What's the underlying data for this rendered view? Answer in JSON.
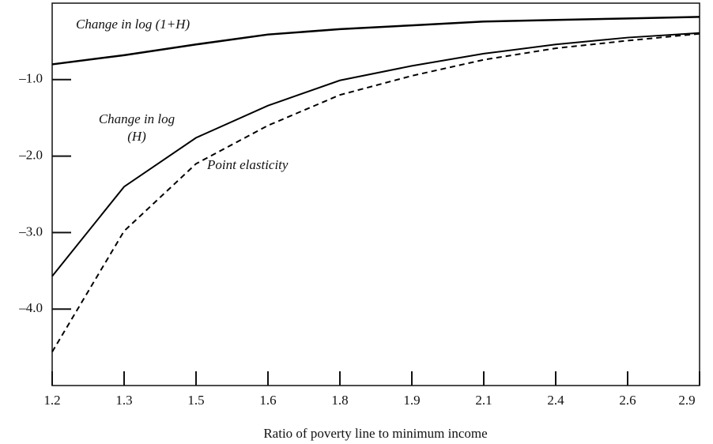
{
  "chart_data": {
    "type": "line",
    "x_label": "Ratio of poverty line to minimum income",
    "categories": [
      "1.2",
      "1.3",
      "1.5",
      "1.6",
      "1.8",
      "1.9",
      "2.1",
      "2.4",
      "2.6",
      "2.9"
    ],
    "series": [
      {
        "name": "Change in log (1+H)",
        "color": "#000000",
        "dash": false,
        "values": [
          -0.8,
          -0.68,
          -0.54,
          -0.41,
          -0.34,
          -0.29,
          -0.24,
          -0.22,
          -0.2,
          -0.18
        ]
      },
      {
        "name": "Change in log (H)",
        "color": "#000000",
        "dash": false,
        "values": [
          -3.57,
          -2.4,
          -1.76,
          -1.34,
          -1.01,
          -0.82,
          -0.66,
          -0.54,
          -0.45,
          -0.39
        ]
      },
      {
        "name": "Point elasticity",
        "color": "#000000",
        "dash": true,
        "values": [
          -4.56,
          -2.98,
          -2.1,
          -1.6,
          -1.2,
          -0.95,
          -0.74,
          -0.59,
          -0.49,
          -0.4
        ]
      }
    ],
    "ylim": [
      -5,
      0
    ],
    "yticks": [
      {
        "value": -1,
        "label": "–1.0"
      },
      {
        "value": -2,
        "label": "–2.0"
      },
      {
        "value": -3,
        "label": "–3.0"
      },
      {
        "value": -4,
        "label": "–4.0"
      }
    ],
    "grid": false
  }
}
